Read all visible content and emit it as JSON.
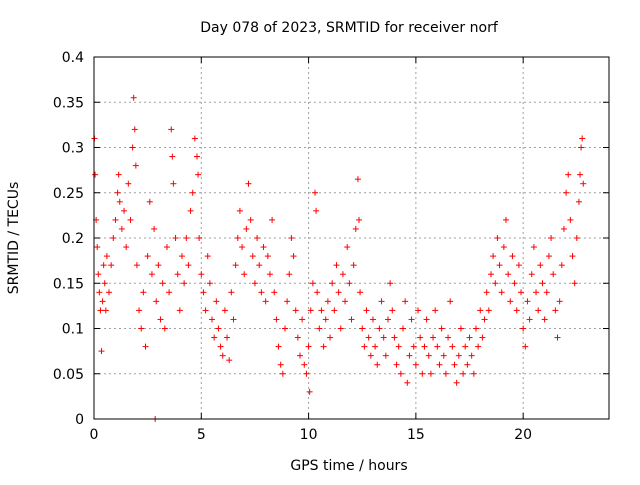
{
  "chart_data": {
    "type": "scatter",
    "title": "Day 078 of 2023, SRMTID for receiver norf",
    "xlabel": "GPS time / hours",
    "ylabel": "SRMTID / TECUs",
    "xlim": [
      0,
      24
    ],
    "ylim": [
      0,
      0.4
    ],
    "xticks": [
      0,
      5,
      10,
      15,
      20
    ],
    "xtick_labels": [
      "0",
      "5",
      "10",
      "15",
      "20"
    ],
    "yticks": [
      0,
      0.05,
      0.1,
      0.15,
      0.2,
      0.25,
      0.3,
      0.35,
      0.4
    ],
    "ytick_labels": [
      "0",
      "0.05",
      "0.1",
      "0.15",
      "0.2",
      "0.25",
      "0.3",
      "0.35",
      "0.4"
    ],
    "grid": true,
    "marker": "+",
    "color": "#ff0000",
    "series": [
      {
        "name": "SRMTID",
        "points": [
          [
            0.02,
            0.31
          ],
          [
            0.05,
            0.27
          ],
          [
            0.1,
            0.22
          ],
          [
            0.15,
            0.19
          ],
          [
            0.2,
            0.16
          ],
          [
            0.25,
            0.14
          ],
          [
            0.3,
            0.12
          ],
          [
            0.35,
            0.075
          ],
          [
            0.4,
            0.13
          ],
          [
            0.45,
            0.17
          ],
          [
            0.5,
            0.15
          ],
          [
            0.55,
            0.12
          ],
          [
            0.6,
            0.18
          ],
          [
            0.7,
            0.14
          ],
          [
            0.8,
            0.17
          ],
          [
            0.9,
            0.2
          ],
          [
            1.0,
            0.22
          ],
          [
            1.1,
            0.25
          ],
          [
            1.15,
            0.27
          ],
          [
            1.2,
            0.24
          ],
          [
            1.3,
            0.21
          ],
          [
            1.4,
            0.23
          ],
          [
            1.5,
            0.19
          ],
          [
            1.6,
            0.26
          ],
          [
            1.7,
            0.22
          ],
          [
            1.8,
            0.3
          ],
          [
            1.85,
            0.355
          ],
          [
            1.9,
            0.32
          ],
          [
            1.95,
            0.28
          ],
          [
            2.0,
            0.17
          ],
          [
            2.1,
            0.12
          ],
          [
            2.2,
            0.1
          ],
          [
            2.3,
            0.14
          ],
          [
            2.4,
            0.08
          ],
          [
            2.5,
            0.18
          ],
          [
            2.6,
            0.24
          ],
          [
            2.7,
            0.16
          ],
          [
            2.8,
            0.21
          ],
          [
            2.85,
            0.0
          ],
          [
            2.9,
            0.13
          ],
          [
            3.0,
            0.17
          ],
          [
            3.1,
            0.11
          ],
          [
            3.2,
            0.15
          ],
          [
            3.3,
            0.1
          ],
          [
            3.4,
            0.19
          ],
          [
            3.5,
            0.14
          ],
          [
            3.6,
            0.32
          ],
          [
            3.65,
            0.29
          ],
          [
            3.7,
            0.26
          ],
          [
            3.8,
            0.2
          ],
          [
            3.9,
            0.16
          ],
          [
            4.0,
            0.12
          ],
          [
            4.1,
            0.18
          ],
          [
            4.2,
            0.15
          ],
          [
            4.3,
            0.2
          ],
          [
            4.4,
            0.17
          ],
          [
            4.5,
            0.23
          ],
          [
            4.6,
            0.25
          ],
          [
            4.7,
            0.31
          ],
          [
            4.8,
            0.29
          ],
          [
            4.85,
            0.27
          ],
          [
            4.9,
            0.2
          ],
          [
            5.0,
            0.16
          ],
          [
            5.1,
            0.14
          ],
          [
            5.2,
            0.12
          ],
          [
            5.3,
            0.18
          ],
          [
            5.4,
            0.15
          ],
          [
            5.5,
            0.11
          ],
          [
            5.6,
            0.09
          ],
          [
            5.7,
            0.13
          ],
          [
            5.8,
            0.1
          ],
          [
            5.9,
            0.08
          ],
          [
            6.0,
            0.07
          ],
          [
            6.1,
            0.12
          ],
          [
            6.2,
            0.09
          ],
          [
            6.3,
            0.065
          ],
          [
            6.4,
            0.14
          ],
          [
            6.5,
            0.11
          ],
          [
            6.6,
            0.17
          ],
          [
            6.7,
            0.2
          ],
          [
            6.8,
            0.23
          ],
          [
            6.9,
            0.19
          ],
          [
            7.0,
            0.16
          ],
          [
            7.1,
            0.21
          ],
          [
            7.2,
            0.26
          ],
          [
            7.3,
            0.22
          ],
          [
            7.4,
            0.18
          ],
          [
            7.5,
            0.15
          ],
          [
            7.6,
            0.2
          ],
          [
            7.7,
            0.17
          ],
          [
            7.8,
            0.14
          ],
          [
            7.9,
            0.19
          ],
          [
            8.0,
            0.13
          ],
          [
            8.1,
            0.18
          ],
          [
            8.2,
            0.16
          ],
          [
            8.3,
            0.22
          ],
          [
            8.4,
            0.14
          ],
          [
            8.5,
            0.11
          ],
          [
            8.6,
            0.08
          ],
          [
            8.7,
            0.06
          ],
          [
            8.8,
            0.05
          ],
          [
            8.9,
            0.1
          ],
          [
            9.0,
            0.13
          ],
          [
            9.1,
            0.16
          ],
          [
            9.2,
            0.2
          ],
          [
            9.3,
            0.18
          ],
          [
            9.4,
            0.12
          ],
          [
            9.5,
            0.09
          ],
          [
            9.6,
            0.07
          ],
          [
            9.7,
            0.11
          ],
          [
            9.8,
            0.06
          ],
          [
            9.9,
            0.05
          ],
          [
            10.0,
            0.08
          ],
          [
            10.05,
            0.03
          ],
          [
            10.1,
            0.12
          ],
          [
            10.2,
            0.15
          ],
          [
            10.3,
            0.25
          ],
          [
            10.35,
            0.23
          ],
          [
            10.4,
            0.14
          ],
          [
            10.5,
            0.1
          ],
          [
            10.6,
            0.12
          ],
          [
            10.7,
            0.08
          ],
          [
            10.8,
            0.11
          ],
          [
            10.9,
            0.13
          ],
          [
            11.0,
            0.09
          ],
          [
            11.1,
            0.15
          ],
          [
            11.2,
            0.12
          ],
          [
            11.3,
            0.17
          ],
          [
            11.4,
            0.14
          ],
          [
            11.5,
            0.1
          ],
          [
            11.6,
            0.16
          ],
          [
            11.7,
            0.13
          ],
          [
            11.8,
            0.19
          ],
          [
            11.9,
            0.15
          ],
          [
            12.0,
            0.11
          ],
          [
            12.1,
            0.17
          ],
          [
            12.2,
            0.21
          ],
          [
            12.3,
            0.265
          ],
          [
            12.35,
            0.22
          ],
          [
            12.4,
            0.14
          ],
          [
            12.5,
            0.1
          ],
          [
            12.6,
            0.08
          ],
          [
            12.7,
            0.12
          ],
          [
            12.8,
            0.09
          ],
          [
            12.9,
            0.07
          ],
          [
            13.0,
            0.11
          ],
          [
            13.1,
            0.08
          ],
          [
            13.2,
            0.06
          ],
          [
            13.3,
            0.1
          ],
          [
            13.4,
            0.13
          ],
          [
            13.5,
            0.09
          ],
          [
            13.6,
            0.07
          ],
          [
            13.7,
            0.11
          ],
          [
            13.8,
            0.15
          ],
          [
            13.9,
            0.12
          ],
          [
            14.0,
            0.09
          ],
          [
            14.1,
            0.06
          ],
          [
            14.2,
            0.08
          ],
          [
            14.3,
            0.05
          ],
          [
            14.4,
            0.1
          ],
          [
            14.5,
            0.13
          ],
          [
            14.6,
            0.04
          ],
          [
            14.7,
            0.07
          ],
          [
            14.8,
            0.11
          ],
          [
            14.9,
            0.08
          ],
          [
            15.0,
            0.06
          ],
          [
            15.1,
            0.12
          ],
          [
            15.2,
            0.09
          ],
          [
            15.3,
            0.05
          ],
          [
            15.4,
            0.08
          ],
          [
            15.5,
            0.11
          ],
          [
            15.6,
            0.07
          ],
          [
            15.7,
            0.05
          ],
          [
            15.8,
            0.09
          ],
          [
            15.9,
            0.12
          ],
          [
            16.0,
            0.08
          ],
          [
            16.1,
            0.06
          ],
          [
            16.2,
            0.1
          ],
          [
            16.3,
            0.07
          ],
          [
            16.4,
            0.05
          ],
          [
            16.5,
            0.09
          ],
          [
            16.6,
            0.13
          ],
          [
            16.7,
            0.08
          ],
          [
            16.8,
            0.06
          ],
          [
            16.9,
            0.04
          ],
          [
            17.0,
            0.07
          ],
          [
            17.1,
            0.1
          ],
          [
            17.2,
            0.05
          ],
          [
            17.3,
            0.08
          ],
          [
            17.4,
            0.06
          ],
          [
            17.5,
            0.09
          ],
          [
            17.6,
            0.07
          ],
          [
            17.7,
            0.05
          ],
          [
            17.8,
            0.1
          ],
          [
            17.9,
            0.08
          ],
          [
            18.0,
            0.12
          ],
          [
            18.1,
            0.09
          ],
          [
            18.2,
            0.11
          ],
          [
            18.3,
            0.14
          ],
          [
            18.4,
            0.12
          ],
          [
            18.5,
            0.16
          ],
          [
            18.6,
            0.18
          ],
          [
            18.7,
            0.15
          ],
          [
            18.8,
            0.2
          ],
          [
            18.9,
            0.17
          ],
          [
            19.0,
            0.14
          ],
          [
            19.1,
            0.19
          ],
          [
            19.2,
            0.22
          ],
          [
            19.3,
            0.16
          ],
          [
            19.4,
            0.13
          ],
          [
            19.5,
            0.18
          ],
          [
            19.6,
            0.15
          ],
          [
            19.7,
            0.12
          ],
          [
            19.8,
            0.17
          ],
          [
            19.9,
            0.14
          ],
          [
            20.0,
            0.1
          ],
          [
            20.1,
            0.08
          ],
          [
            20.2,
            0.13
          ],
          [
            20.3,
            0.11
          ],
          [
            20.4,
            0.16
          ],
          [
            20.5,
            0.19
          ],
          [
            20.6,
            0.14
          ],
          [
            20.7,
            0.12
          ],
          [
            20.8,
            0.17
          ],
          [
            20.9,
            0.15
          ],
          [
            21.0,
            0.11
          ],
          [
            21.1,
            0.14
          ],
          [
            21.2,
            0.18
          ],
          [
            21.3,
            0.2
          ],
          [
            21.4,
            0.16
          ],
          [
            21.5,
            0.12
          ],
          [
            21.6,
            0.09
          ],
          [
            21.7,
            0.13
          ],
          [
            21.8,
            0.17
          ],
          [
            21.9,
            0.21
          ],
          [
            22.0,
            0.25
          ],
          [
            22.1,
            0.27
          ],
          [
            22.2,
            0.22
          ],
          [
            22.3,
            0.18
          ],
          [
            22.4,
            0.15
          ],
          [
            22.5,
            0.2
          ],
          [
            22.6,
            0.24
          ],
          [
            22.65,
            0.27
          ],
          [
            22.7,
            0.3
          ],
          [
            22.75,
            0.31
          ],
          [
            22.8,
            0.26
          ]
        ]
      }
    ]
  }
}
